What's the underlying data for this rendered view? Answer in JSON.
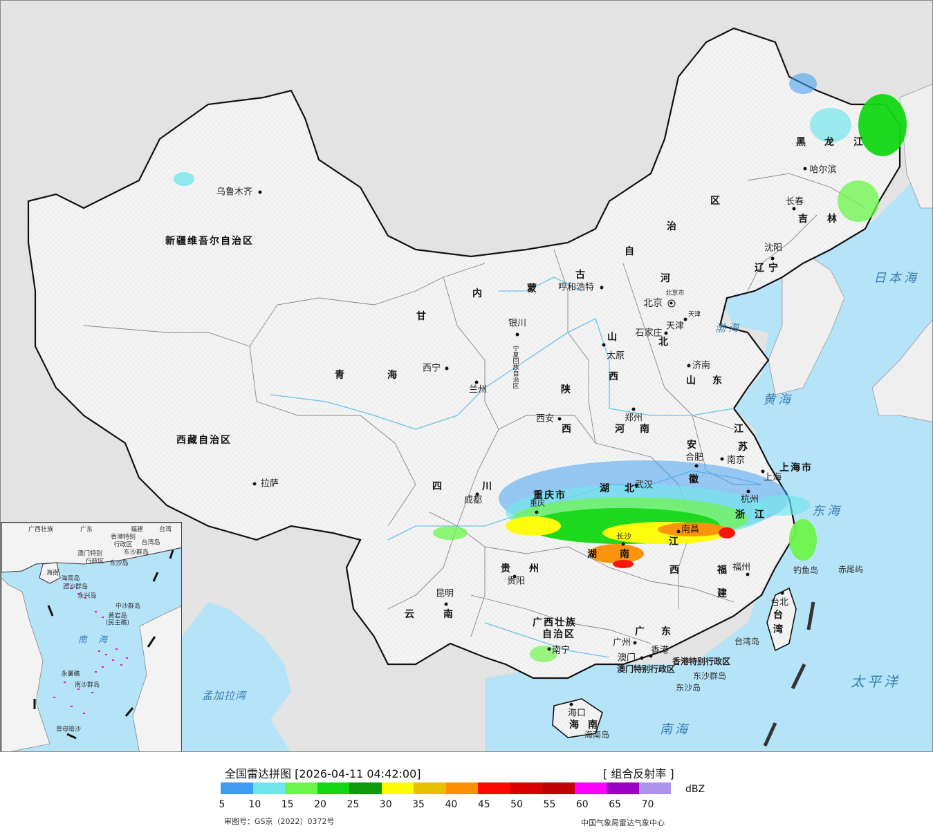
{
  "map": {
    "colors": {
      "land": "#f3f3f3",
      "china_land": "#f7f7f7",
      "sea": "#b5e3f7",
      "border": "#111111",
      "province_border": "#888888",
      "river": "#6cc4ee",
      "background": "#e3e3e3"
    },
    "provinces": [
      {
        "name": "新疆维吾尔自治区"
      },
      {
        "name": "西藏自治区"
      },
      {
        "name": "青"
      },
      {
        "name": "海"
      },
      {
        "name": "甘"
      },
      {
        "name": "四"
      },
      {
        "name": "川"
      },
      {
        "name": "云"
      },
      {
        "name": "南"
      },
      {
        "name": "贵"
      },
      {
        "name": "州"
      },
      {
        "name": "广西壮族"
      },
      {
        "name": "自治区"
      },
      {
        "name": "广"
      },
      {
        "name": "东"
      },
      {
        "name": "湖"
      },
      {
        "name": "北"
      },
      {
        "name": "湖"
      },
      {
        "name": "南"
      },
      {
        "name": "江"
      },
      {
        "name": "西"
      },
      {
        "name": "福"
      },
      {
        "name": "建"
      },
      {
        "name": "浙"
      },
      {
        "name": "江"
      },
      {
        "name": "安"
      },
      {
        "name": "徽"
      },
      {
        "name": "江"
      },
      {
        "name": "苏"
      },
      {
        "name": "河"
      },
      {
        "name": "南"
      },
      {
        "name": "陕"
      },
      {
        "name": "西"
      },
      {
        "name": "山"
      },
      {
        "name": "西"
      },
      {
        "name": "山"
      },
      {
        "name": "东"
      },
      {
        "name": "河"
      },
      {
        "name": "北"
      },
      {
        "name": "内"
      },
      {
        "name": "蒙"
      },
      {
        "name": "古"
      },
      {
        "name": "自"
      },
      {
        "name": "治"
      },
      {
        "name": "区"
      },
      {
        "name": "黑"
      },
      {
        "name": "龙"
      },
      {
        "name": "江"
      },
      {
        "name": "吉"
      },
      {
        "name": "林"
      },
      {
        "name": "辽"
      },
      {
        "name": "宁"
      },
      {
        "name": "重庆市"
      },
      {
        "name": "上海市"
      },
      {
        "name": "海"
      },
      {
        "name": "南"
      },
      {
        "name": "台"
      },
      {
        "name": "湾"
      },
      {
        "name": "北京市"
      },
      {
        "name": "天津"
      },
      {
        "name": "宁夏回族自治区"
      },
      {
        "name": "香港特别行政区"
      },
      {
        "name": "澳门特别行政区"
      }
    ],
    "cities": [
      {
        "name": "乌鲁木齐"
      },
      {
        "name": "拉萨"
      },
      {
        "name": "西宁"
      },
      {
        "name": "兰州"
      },
      {
        "name": "银川"
      },
      {
        "name": "呼和浩特"
      },
      {
        "name": "北京"
      },
      {
        "name": "天津"
      },
      {
        "name": "石家庄"
      },
      {
        "name": "太原"
      },
      {
        "name": "济南"
      },
      {
        "name": "郑州"
      },
      {
        "name": "西安"
      },
      {
        "name": "成都"
      },
      {
        "name": "重庆"
      },
      {
        "name": "武汉"
      },
      {
        "name": "合肥"
      },
      {
        "name": "南京"
      },
      {
        "name": "上海"
      },
      {
        "name": "杭州"
      },
      {
        "name": "南昌"
      },
      {
        "name": "长沙"
      },
      {
        "name": "贵阳"
      },
      {
        "name": "昆明"
      },
      {
        "name": "南宁"
      },
      {
        "name": "广州"
      },
      {
        "name": "澳门"
      },
      {
        "name": "香港"
      },
      {
        "name": "福州"
      },
      {
        "name": "台北"
      },
      {
        "name": "海口"
      },
      {
        "name": "哈尔滨"
      },
      {
        "name": "长春"
      },
      {
        "name": "沈阳"
      }
    ],
    "seas": [
      {
        "name": "日本海"
      },
      {
        "name": "渤海"
      },
      {
        "name": "黄海"
      },
      {
        "name": "东海"
      },
      {
        "name": "太平洋"
      },
      {
        "name": "南海"
      },
      {
        "name": "孟加拉湾"
      }
    ],
    "islands": [
      {
        "name": "钓鱼岛"
      },
      {
        "name": "赤尾屿"
      },
      {
        "name": "台湾岛"
      },
      {
        "name": "东沙群岛"
      },
      {
        "name": "东沙岛"
      },
      {
        "name": "海南岛"
      }
    ]
  },
  "inset": {
    "labels": [
      {
        "name": "广西壮族"
      },
      {
        "name": "广东"
      },
      {
        "name": "福建"
      },
      {
        "name": "台湾"
      },
      {
        "name": "香港特别"
      },
      {
        "name": "行政区"
      },
      {
        "name": "澳门特别"
      },
      {
        "name": "行政区"
      },
      {
        "name": "东沙群岛"
      },
      {
        "name": "台湾岛"
      },
      {
        "name": "东沙岛"
      },
      {
        "name": "海南"
      },
      {
        "name": "海南岛"
      },
      {
        "name": "西沙群岛"
      },
      {
        "name": "永兴岛"
      },
      {
        "name": "中沙群岛"
      },
      {
        "name": "黄岩岛"
      },
      {
        "name": "(民主礁)"
      },
      {
        "name": "永暑礁"
      },
      {
        "name": "南沙群岛"
      },
      {
        "name": "曾母暗沙"
      }
    ],
    "sea_label": "南 海"
  },
  "legend": {
    "title": "全国雷达拼图 [2026-04-11 04:42:00]",
    "product": "[ 组合反射率 ]",
    "unit": "dBZ",
    "ticks": [
      "5",
      "10",
      "15",
      "20",
      "25",
      "30",
      "35",
      "40",
      "45",
      "50",
      "55",
      "60",
      "65",
      "70"
    ],
    "colors": [
      "#3f9cf0",
      "#6ee6ec",
      "#6cf54a",
      "#12d712",
      "#0c9a0c",
      "#fdfd00",
      "#e7c100",
      "#fb8f00",
      "#fa0a00",
      "#d80000",
      "#c00000",
      "#ff00ff",
      "#9b00c3",
      "#ad93ee"
    ],
    "review_number": "审图号：GS京（2022）0372号",
    "agency": "中国气象局雷达气象中心"
  }
}
